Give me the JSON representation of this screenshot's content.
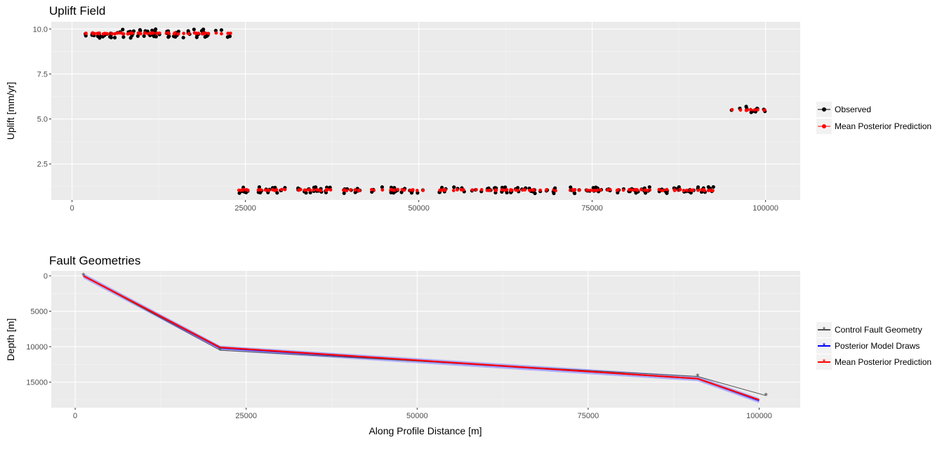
{
  "chart_data": [
    {
      "type": "scatter",
      "title": "Uplift Field",
      "xlabel": "",
      "ylabel": "Uplift [mm/yr]",
      "xlim": [
        -3000,
        105000
      ],
      "ylim": [
        0.5,
        10.4
      ],
      "x_ticks": [
        0,
        25000,
        50000,
        75000,
        100000
      ],
      "y_ticks": [
        2.5,
        5.0,
        7.5,
        10.0
      ],
      "y_tick_labels": [
        "2.5",
        "5.0",
        "7.5",
        "10.0"
      ],
      "grid": true,
      "legend_position": "right",
      "colors": {
        "observed": "#000000",
        "prediction": "#ff0000"
      },
      "series": [
        {
          "name": "Observed",
          "segments": [
            {
              "x_range": [
                1500,
                23200
              ],
              "level": 9.75,
              "spread": 0.25
            },
            {
              "x_range": [
                24000,
                92500
              ],
              "level": 1.05,
              "spread": 0.18
            },
            {
              "x_range": [
                95000,
                100000
              ],
              "level": 5.5,
              "spread": 0.2
            }
          ]
        },
        {
          "name": "Mean Posterior Prediction",
          "segments": [
            {
              "x_range": [
                1500,
                23200
              ],
              "level": 9.75
            },
            {
              "x_range": [
                24000,
                92500
              ],
              "level": 1.05
            },
            {
              "x_range": [
                95000,
                100000
              ],
              "level": 5.5
            }
          ]
        }
      ]
    },
    {
      "type": "line",
      "title": "Fault Geometries",
      "xlabel": "Along Profile Distance [m]",
      "ylabel": "Depth [m]",
      "xlim": [
        -3500,
        106000
      ],
      "ylim": [
        18600,
        -700
      ],
      "x_ticks": [
        0,
        25000,
        50000,
        75000,
        100000
      ],
      "y_ticks": [
        0,
        5000,
        10000,
        15000
      ],
      "grid": true,
      "legend_position": "right",
      "colors": {
        "control": "#4d4d4d",
        "draws": "#0000ff",
        "draws_band": "#9999ff",
        "prediction": "#ff0000"
      },
      "series": [
        {
          "name": "Control Fault Geometry",
          "x": [
            1200,
            21200,
            91000,
            101000
          ],
          "y": [
            0,
            10500,
            14200,
            16900
          ]
        },
        {
          "name": "Posterior Model Draws",
          "x": [
            1200,
            21200,
            91000,
            100000
          ],
          "y": [
            0,
            10200,
            14500,
            17600
          ],
          "band": 350
        },
        {
          "name": "Mean Posterior Prediction",
          "x": [
            1200,
            21200,
            91000,
            100000
          ],
          "y": [
            0,
            10100,
            14500,
            17500
          ]
        }
      ]
    }
  ],
  "legend_top": [
    "Observed",
    "Mean Posterior Prediction"
  ],
  "legend_bottom": [
    "Control Fault Geometry",
    "Posterior Model Draws",
    "Mean Posterior Prediction"
  ]
}
